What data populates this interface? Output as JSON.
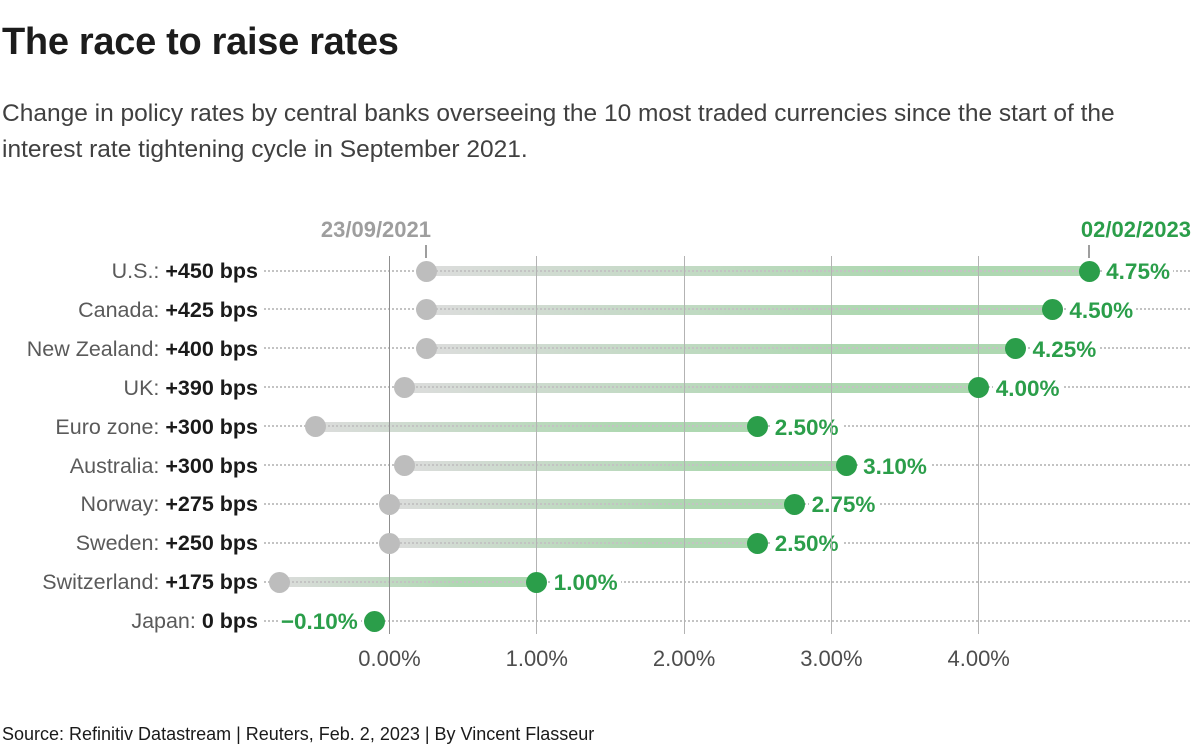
{
  "chart_data": {
    "type": "dumbbell",
    "title": "The race to raise rates",
    "subtitle": "Change in policy rates by central banks overseeing the 10 most traded currencies since the start of the interest rate tightening cycle in September 2021.",
    "source": "Source: Refinitiv Datastream | Reuters, Feb. 2, 2023 | By Vincent Flasseur",
    "start_date_label": "23/09/2021",
    "end_date_label": "02/02/2023",
    "xlabel": "",
    "ylabel": "",
    "x_axis": {
      "unit": "%",
      "range": [
        -0.85,
        5.45
      ],
      "gridlines": true,
      "ticks": [
        {
          "label": "0.00%",
          "value": 0
        },
        {
          "label": "1.00%",
          "value": 1
        },
        {
          "label": "2.00%",
          "value": 2
        },
        {
          "label": "3.00%",
          "value": 3
        },
        {
          "label": "4.00%",
          "value": 4
        }
      ]
    },
    "rows": [
      {
        "country": "U.S.",
        "change_label": "+450 bps",
        "change_bps": 450,
        "start": 0.25,
        "end": 4.75,
        "end_label": "4.75%",
        "label_side": "right"
      },
      {
        "country": "Canada",
        "change_label": "+425 bps",
        "change_bps": 425,
        "start": 0.25,
        "end": 4.5,
        "end_label": "4.50%",
        "label_side": "right"
      },
      {
        "country": "New Zealand",
        "change_label": "+400 bps",
        "change_bps": 400,
        "start": 0.25,
        "end": 4.25,
        "end_label": "4.25%",
        "label_side": "right"
      },
      {
        "country": "UK",
        "change_label": "+390 bps",
        "change_bps": 390,
        "start": 0.1,
        "end": 4.0,
        "end_label": "4.00%",
        "label_side": "right"
      },
      {
        "country": "Euro zone",
        "change_label": "+300 bps",
        "change_bps": 300,
        "start": -0.5,
        "end": 2.5,
        "end_label": "2.50%",
        "label_side": "right"
      },
      {
        "country": "Australia",
        "change_label": "+300 bps",
        "change_bps": 300,
        "start": 0.1,
        "end": 3.1,
        "end_label": "3.10%",
        "label_side": "right"
      },
      {
        "country": "Norway",
        "change_label": "+275 bps",
        "change_bps": 275,
        "start": 0.0,
        "end": 2.75,
        "end_label": "2.75%",
        "label_side": "right"
      },
      {
        "country": "Sweden",
        "change_label": "+250 bps",
        "change_bps": 250,
        "start": 0.0,
        "end": 2.5,
        "end_label": "2.50%",
        "label_side": "right"
      },
      {
        "country": "Switzerland",
        "change_label": "+175 bps",
        "change_bps": 175,
        "start": -0.75,
        "end": 1.0,
        "end_label": "1.00%",
        "label_side": "right"
      },
      {
        "country": "Japan",
        "change_label": "0 bps",
        "change_bps": 0,
        "start": -0.1,
        "end": -0.1,
        "end_label": "−0.10%",
        "label_side": "left"
      }
    ],
    "colors": {
      "green": "#2b9e4a",
      "gray_dot": "#bdbdbd",
      "bar_start": "#dcdcdc",
      "bar_end": "#aed8b1",
      "leader_dots": "#c3c3c3",
      "gridline": "#b3b3b3",
      "gridline_zero": "#8f8f8f",
      "date_gray": "#9e9e9e",
      "country_text": "#5a5a5a",
      "change_text": "#1a1a1a"
    }
  }
}
